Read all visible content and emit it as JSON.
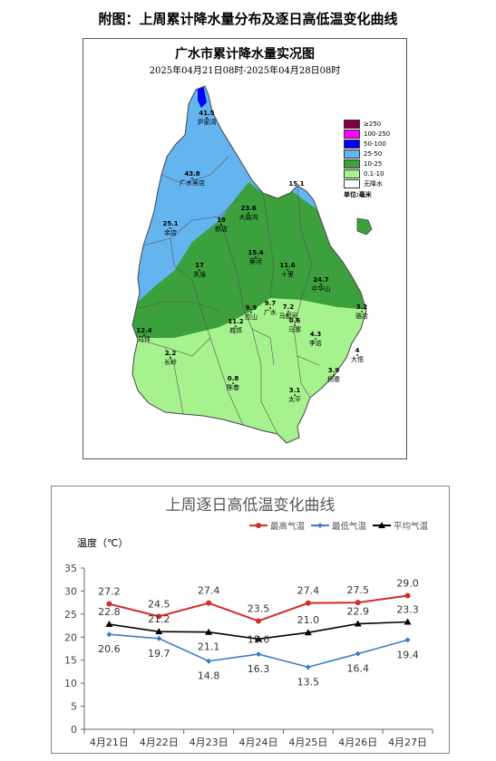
{
  "figure_title": "附图：上周累计降水量分布及逐日高低温变化曲线",
  "map": {
    "title": "广水市累计降水量实况图",
    "subtitle": "2025年04月21日08时-2025年04月28日08时",
    "legend": [
      {
        "label": "≥250",
        "color": "#800040"
      },
      {
        "label": "100-250",
        "color": "#ff00ff"
      },
      {
        "label": "50-100",
        "color": "#0000ff"
      },
      {
        "label": "25-50",
        "color": "#64b4f0"
      },
      {
        "label": "10-25",
        "color": "#3ca03c"
      },
      {
        "label": "0.1-10",
        "color": "#a6f28e"
      },
      {
        "label": "无降水",
        "color": "#ffffff"
      }
    ],
    "unit": "单位:毫米",
    "stations": [
      {
        "name": "尹家湾",
        "value": "41.5"
      },
      {
        "name": "广水吴店",
        "value": "43.8"
      },
      {
        "name": "余店",
        "value": "25.1"
      },
      {
        "name": "郝店",
        "value": "19"
      },
      {
        "name": "A3002",
        "value": "15.1"
      },
      {
        "name": "大路沟",
        "value": "23.6"
      },
      {
        "name": "关庙",
        "value": "17"
      },
      {
        "name": "蔡河",
        "value": "15.4"
      },
      {
        "name": "十里",
        "value": "11.6"
      },
      {
        "name": "中华山",
        "value": "24.7"
      },
      {
        "name": "马坪",
        "value": "12.4"
      },
      {
        "name": "城郊",
        "value": "11.2"
      },
      {
        "name": "应山",
        "value": "9.9"
      },
      {
        "name": "广水",
        "value": "9.7"
      },
      {
        "name": "马都司",
        "value": "7.2"
      },
      {
        "name": "骆店",
        "value": "3.2"
      },
      {
        "name": "马寨",
        "value": "0.6"
      },
      {
        "name": "李店",
        "value": "4.3"
      },
      {
        "name": "大悟",
        "value": "4"
      },
      {
        "name": "长岭",
        "value": "2.2"
      },
      {
        "name": "杨寨",
        "value": "3.9"
      },
      {
        "name": "陈巷",
        "value": "0.8"
      },
      {
        "name": "太平",
        "value": "3.1"
      }
    ]
  },
  "chart_data": {
    "type": "line",
    "title": "上周逐日高低温变化曲线",
    "ylabel": "温度（℃）",
    "xlabel": "",
    "categories": [
      "4月21日",
      "4月22日",
      "4月23日",
      "4月24日",
      "4月25日",
      "4月26日",
      "4月27日"
    ],
    "ylim": [
      0,
      35
    ],
    "yticks": [
      0,
      5,
      10,
      15,
      20,
      25,
      30,
      35
    ],
    "grid": false,
    "legend_position": "top-right",
    "series": [
      {
        "name": "最高气温",
        "color": "#d42a2a",
        "marker": "circle",
        "values": [
          27.2,
          24.5,
          27.4,
          23.5,
          27.4,
          27.5,
          29.0
        ],
        "labels": [
          "27.2",
          "24.5",
          "27.4",
          "23.5",
          "27.4",
          "27.5",
          "29.0"
        ]
      },
      {
        "name": "最低气温",
        "color": "#3b7cc4",
        "marker": "diamond",
        "values": [
          20.6,
          19.7,
          14.8,
          16.3,
          13.5,
          16.4,
          19.4
        ],
        "labels": [
          "20.6",
          "19.7",
          "14.8",
          "16.3",
          "13.5",
          "16.4",
          "19.4"
        ]
      },
      {
        "name": "平均气温",
        "color": "#000000",
        "marker": "triangle",
        "values": [
          22.8,
          21.2,
          21.1,
          19.6,
          21.0,
          22.9,
          23.3
        ],
        "labels": [
          "22.8",
          "21.2",
          "21.1",
          "19.6",
          "21.0",
          "22.9",
          "23.3"
        ]
      }
    ]
  }
}
